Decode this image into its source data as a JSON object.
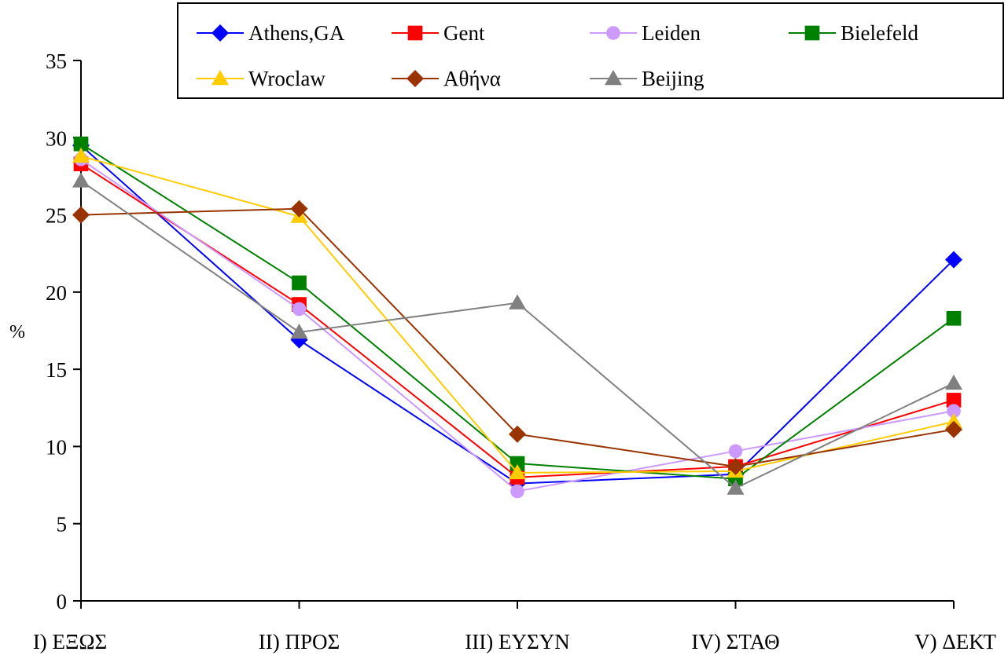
{
  "chart_data": {
    "type": "line",
    "title": "",
    "xlabel": "",
    "ylabel": "%",
    "ylim": [
      0,
      35
    ],
    "yticks": [
      0,
      5,
      10,
      15,
      20,
      25,
      30,
      35
    ],
    "grid": false,
    "legend_position": "top-right",
    "categories": [
      "I) ΕΞΩΣ",
      "II) ΠΡΟΣ",
      "III) ΕΥΣΥΝ",
      "IV) ΣΤΑΘ",
      "V) ΔΕΚΤ"
    ],
    "series": [
      {
        "name": "Athens,GA",
        "color": "#0000FF",
        "marker": "diamond",
        "values": [
          29.5,
          16.9,
          7.6,
          8.2,
          22.1
        ]
      },
      {
        "name": "Gent",
        "color": "#FF0000",
        "marker": "square",
        "values": [
          28.3,
          19.2,
          8.0,
          8.7,
          13.0
        ]
      },
      {
        "name": "Leiden",
        "color": "#CC99FF",
        "marker": "circle",
        "values": [
          28.6,
          18.9,
          7.1,
          9.7,
          12.3
        ]
      },
      {
        "name": "Bielefeld",
        "color": "#008000",
        "marker": "square",
        "values": [
          29.6,
          20.6,
          8.9,
          7.9,
          18.3
        ]
      },
      {
        "name": "Wroclaw",
        "color": "#FFCC00",
        "marker": "triangle",
        "values": [
          28.8,
          24.9,
          8.3,
          8.4,
          11.6
        ]
      },
      {
        "name": "Αθήνα",
        "color": "#993300",
        "marker": "diamond",
        "values": [
          25.0,
          25.4,
          10.8,
          8.7,
          11.1
        ]
      },
      {
        "name": "Beijing",
        "color": "#808080",
        "marker": "triangle",
        "values": [
          27.2,
          17.4,
          19.3,
          7.3,
          14.1
        ]
      }
    ]
  }
}
